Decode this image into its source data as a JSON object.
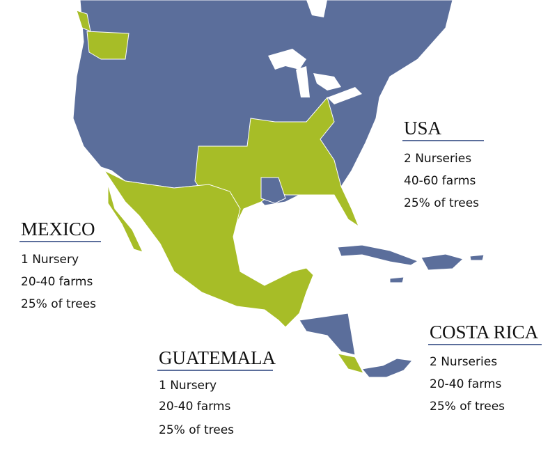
{
  "regions": [
    {
      "name": "USA",
      "lines": [
        "2 Nurseries",
        "40-60 farms",
        "25% of trees"
      ]
    },
    {
      "name": "MEXICO",
      "lines": [
        "1 Nursery",
        "20-40 farms",
        "25% of trees"
      ]
    },
    {
      "name": "GUATEMALA",
      "lines": [
        "1 Nursery",
        "20-40 farms",
        "25% of trees"
      ]
    },
    {
      "name": "COSTA RICA",
      "lines": [
        "2 Nurseries",
        "20-40 farms",
        "25% of trees"
      ]
    }
  ]
}
